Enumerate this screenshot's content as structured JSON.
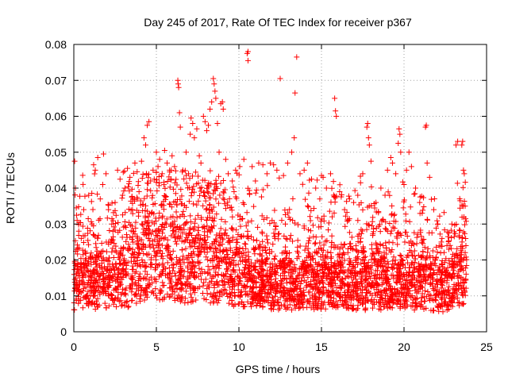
{
  "chart_data": {
    "type": "scatter",
    "title": "Day 245 of 2017, Rate Of TEC Index for receiver p367",
    "xlabel": "GPS time / hours",
    "ylabel": "ROTI / TECUs",
    "xlim": [
      0,
      25
    ],
    "ylim": [
      0,
      0.08
    ],
    "xticks": [
      0,
      5,
      10,
      15,
      20,
      25
    ],
    "xtick_labels": [
      "0",
      "5",
      "10",
      "15",
      "20",
      "25"
    ],
    "yticks": [
      0,
      0.01,
      0.02,
      0.03,
      0.04,
      0.05,
      0.06,
      0.07,
      0.08
    ],
    "ytick_labels": [
      "0",
      "0.01",
      "0.02",
      "0.03",
      "0.04",
      "0.05",
      "0.06",
      "0.07",
      "0.08"
    ],
    "grid": true,
    "marker": "plus",
    "color": "#ff0000",
    "series": [
      {
        "points": [
          [
            0.05,
            0.0475
          ],
          [
            0.1,
            0.04
          ],
          [
            0.15,
            0.0345
          ],
          [
            0.2,
            0.031
          ],
          [
            0.3,
            0.028
          ],
          [
            0.45,
            0.026
          ],
          [
            0.6,
            0.034
          ],
          [
            0.7,
            0.022
          ],
          [
            0.9,
            0.038
          ],
          [
            1.1,
            0.03
          ],
          [
            1.2,
            0.0465
          ],
          [
            1.3,
            0.045
          ],
          [
            1.45,
            0.0485
          ],
          [
            1.6,
            0.037
          ],
          [
            1.75,
            0.041
          ],
          [
            1.8,
            0.0495
          ],
          [
            1.95,
            0.044
          ],
          [
            2.1,
            0.034
          ],
          [
            2.3,
            0.03
          ],
          [
            2.5,
            0.036
          ],
          [
            2.65,
            0.045
          ],
          [
            2.8,
            0.0425
          ],
          [
            2.95,
            0.038
          ],
          [
            3.1,
            0.04
          ],
          [
            3.25,
            0.0455
          ],
          [
            3.4,
            0.043
          ],
          [
            3.55,
            0.034
          ],
          [
            3.7,
            0.047
          ],
          [
            3.85,
            0.037
          ],
          [
            3.95,
            0.039
          ],
          [
            4.1,
            0.0475
          ],
          [
            4.25,
            0.054
          ],
          [
            4.35,
            0.052
          ],
          [
            4.45,
            0.0575
          ],
          [
            4.55,
            0.0585
          ],
          [
            4.65,
            0.042
          ],
          [
            4.8,
            0.045
          ],
          [
            5.0,
            0.05
          ],
          [
            5.1,
            0.046
          ],
          [
            5.2,
            0.048
          ],
          [
            5.35,
            0.044
          ],
          [
            5.5,
            0.0505
          ],
          [
            5.65,
            0.047
          ],
          [
            5.8,
            0.045
          ],
          [
            5.95,
            0.049
          ],
          [
            6.1,
            0.046
          ],
          [
            6.3,
            0.07
          ],
          [
            6.32,
            0.069
          ],
          [
            6.35,
            0.068
          ],
          [
            6.4,
            0.061
          ],
          [
            6.45,
            0.057
          ],
          [
            6.6,
            0.045
          ],
          [
            6.8,
            0.05
          ],
          [
            6.95,
            0.044
          ],
          [
            7.05,
            0.055
          ],
          [
            7.1,
            0.0595
          ],
          [
            7.2,
            0.058
          ],
          [
            7.3,
            0.054
          ],
          [
            7.45,
            0.0565
          ],
          [
            7.6,
            0.049
          ],
          [
            7.7,
            0.047
          ],
          [
            7.85,
            0.06
          ],
          [
            7.95,
            0.0585
          ],
          [
            8.05,
            0.056
          ],
          [
            8.15,
            0.0575
          ],
          [
            8.25,
            0.062
          ],
          [
            8.35,
            0.064
          ],
          [
            8.45,
            0.0705
          ],
          [
            8.5,
            0.069
          ],
          [
            8.55,
            0.067
          ],
          [
            8.6,
            0.065
          ],
          [
            8.7,
            0.058
          ],
          [
            8.8,
            0.05
          ],
          [
            8.9,
            0.0635
          ],
          [
            9.0,
            0.064
          ],
          [
            9.05,
            0.062
          ],
          [
            9.2,
            0.048
          ],
          [
            9.35,
            0.044
          ],
          [
            9.6,
            0.042
          ],
          [
            9.8,
            0.045
          ],
          [
            10.05,
            0.046
          ],
          [
            10.3,
            0.048
          ],
          [
            10.5,
            0.0775
          ],
          [
            10.55,
            0.078
          ],
          [
            10.55,
            0.0755
          ],
          [
            10.8,
            0.046
          ],
          [
            11.0,
            0.042
          ],
          [
            11.2,
            0.047
          ],
          [
            11.45,
            0.0465
          ],
          [
            11.7,
            0.044
          ],
          [
            11.9,
            0.047
          ],
          [
            12.1,
            0.0465
          ],
          [
            12.3,
            0.045
          ],
          [
            12.5,
            0.0705
          ],
          [
            12.7,
            0.0435
          ],
          [
            12.95,
            0.047
          ],
          [
            13.2,
            0.05
          ],
          [
            13.35,
            0.054
          ],
          [
            13.4,
            0.0665
          ],
          [
            13.5,
            0.0765
          ],
          [
            13.7,
            0.044
          ],
          [
            13.95,
            0.045
          ],
          [
            14.15,
            0.047
          ],
          [
            14.4,
            0.0425
          ],
          [
            14.65,
            0.04
          ],
          [
            14.9,
            0.037
          ],
          [
            15.0,
            0.0435
          ],
          [
            15.1,
            0.043
          ],
          [
            15.3,
            0.04
          ],
          [
            15.55,
            0.044
          ],
          [
            15.8,
            0.065
          ],
          [
            15.85,
            0.0615
          ],
          [
            15.9,
            0.06
          ],
          [
            16.1,
            0.039
          ],
          [
            16.4,
            0.034
          ],
          [
            16.7,
            0.037
          ],
          [
            16.95,
            0.036
          ],
          [
            17.2,
            0.038
          ],
          [
            17.5,
            0.044
          ],
          [
            17.75,
            0.057
          ],
          [
            17.8,
            0.058
          ],
          [
            17.85,
            0.054
          ],
          [
            17.9,
            0.052
          ],
          [
            18.0,
            0.0475
          ],
          [
            18.3,
            0.036
          ],
          [
            18.6,
            0.04
          ],
          [
            18.85,
            0.038
          ],
          [
            19.0,
            0.045
          ],
          [
            19.2,
            0.0485
          ],
          [
            19.3,
            0.047
          ],
          [
            19.5,
            0.044
          ],
          [
            19.65,
            0.0525
          ],
          [
            19.7,
            0.0565
          ],
          [
            19.75,
            0.055
          ],
          [
            19.8,
            0.05
          ],
          [
            20.0,
            0.041
          ],
          [
            20.15,
            0.045
          ],
          [
            20.3,
            0.05
          ],
          [
            20.45,
            0.046
          ],
          [
            20.7,
            0.04
          ],
          [
            20.95,
            0.036
          ],
          [
            21.1,
            0.033
          ],
          [
            21.3,
            0.057
          ],
          [
            21.35,
            0.0575
          ],
          [
            21.4,
            0.047
          ],
          [
            21.55,
            0.043
          ],
          [
            21.8,
            0.034
          ],
          [
            22.05,
            0.03
          ],
          [
            22.3,
            0.026
          ],
          [
            22.6,
            0.024
          ],
          [
            22.9,
            0.03
          ],
          [
            23.15,
            0.052
          ],
          [
            23.25,
            0.053
          ],
          [
            23.4,
            0.0365
          ],
          [
            23.5,
            0.052
          ],
          [
            23.55,
            0.053
          ],
          [
            23.6,
            0.045
          ],
          [
            23.65,
            0.044
          ],
          [
            23.7,
            0.035
          ]
        ]
      }
    ]
  }
}
